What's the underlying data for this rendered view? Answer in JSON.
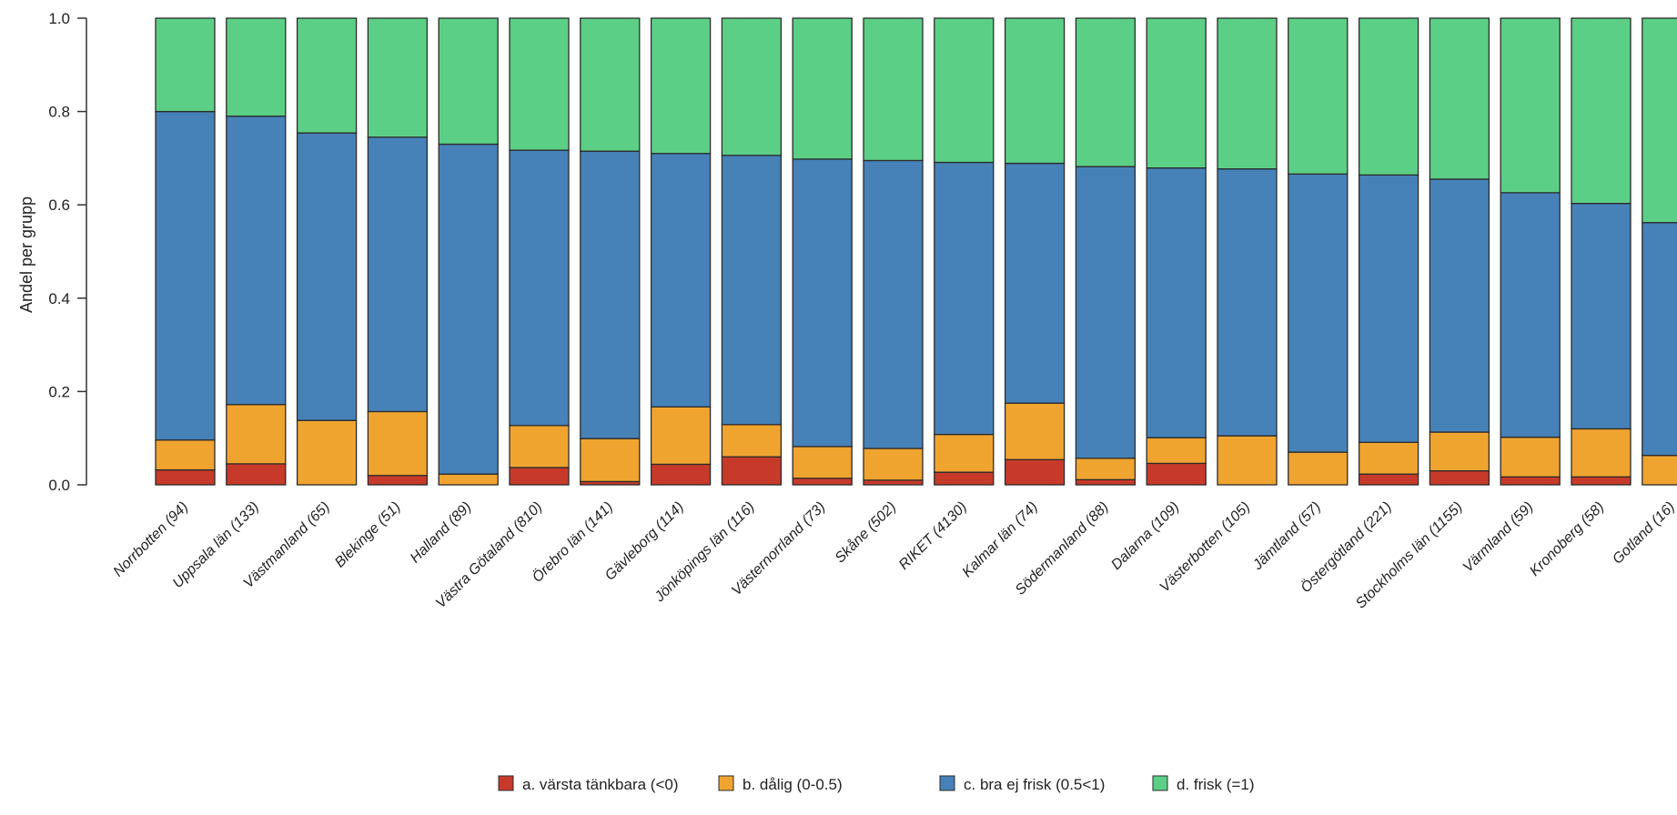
{
  "chart_data": {
    "type": "bar",
    "stacked": true,
    "ylabel": "Andel per grupp",
    "xlabel": "",
    "ylim": [
      0,
      1
    ],
    "yticks": [
      "0.0",
      "0.2",
      "0.4",
      "0.6",
      "0.8",
      "1.0"
    ],
    "grid": false,
    "legend_position": "bottom",
    "categories": [
      "Norrbotten (94)",
      "Uppsala län (133)",
      "Västmanland (65)",
      "Blekinge (51)",
      "Halland (89)",
      "Västra Götaland (810)",
      "Örebro län (141)",
      "Gävleborg (114)",
      "Jönköpings län (116)",
      "Västernorrland (73)",
      "Skåne (502)",
      "RIKET (4130)",
      "Kalmar län (74)",
      "Södermanland (88)",
      "Dalarna (109)",
      "Västerbotten (105)",
      "Jämtland (57)",
      "Östergötland (221)",
      "Stockholms län (1155)",
      "Värmland (59)",
      "Kronoberg (58)",
      "Gotland (16)"
    ],
    "series": [
      {
        "name": "a. värsta tänkbara (<0)",
        "color": "#c73a2a",
        "values": [
          0.032,
          0.045,
          0.0,
          0.02,
          0.0,
          0.037,
          0.007,
          0.044,
          0.06,
          0.014,
          0.01,
          0.027,
          0.054,
          0.011,
          0.046,
          0.0,
          0.0,
          0.023,
          0.03,
          0.017,
          0.017,
          0.0
        ]
      },
      {
        "name": "b. dålig (0-0.5)",
        "color": "#f0a430",
        "values": [
          0.064,
          0.127,
          0.138,
          0.137,
          0.023,
          0.09,
          0.092,
          0.123,
          0.069,
          0.068,
          0.068,
          0.081,
          0.121,
          0.046,
          0.055,
          0.105,
          0.07,
          0.068,
          0.083,
          0.085,
          0.103,
          0.063
        ]
      },
      {
        "name": "c. bra ej frisk (0.5<1)",
        "color": "#4682b8",
        "values": [
          0.704,
          0.618,
          0.616,
          0.588,
          0.707,
          0.59,
          0.616,
          0.543,
          0.577,
          0.616,
          0.617,
          0.583,
          0.514,
          0.625,
          0.578,
          0.572,
          0.596,
          0.573,
          0.542,
          0.524,
          0.483,
          0.499
        ]
      },
      {
        "name": "d. frisk (=1)",
        "color": "#5ccf86",
        "values": [
          0.2,
          0.21,
          0.246,
          0.255,
          0.27,
          0.283,
          0.285,
          0.29,
          0.294,
          0.302,
          0.305,
          0.309,
          0.311,
          0.318,
          0.321,
          0.323,
          0.334,
          0.336,
          0.345,
          0.374,
          0.397,
          0.438
        ]
      }
    ]
  }
}
